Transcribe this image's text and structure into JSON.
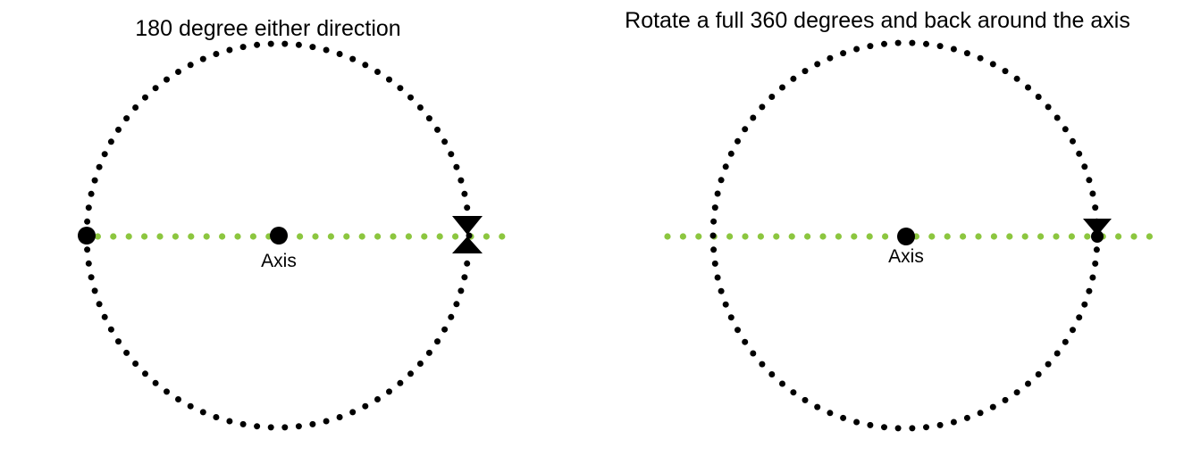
{
  "colors": {
    "background": "#ffffff",
    "circle_dots": "#000000",
    "axis_line": "#8cc63f",
    "markers": "#000000",
    "text": "#000000"
  },
  "panels": [
    {
      "id": "left",
      "title": "180 degree either direction",
      "axis_label": "Axis",
      "center_marker": "dot",
      "left_marker": "dot",
      "right_marker": "hourglass-icon"
    },
    {
      "id": "right",
      "title": "Rotate a full 360 degrees and back around the axis",
      "axis_label": "Axis",
      "center_marker": "dot",
      "left_marker": "none",
      "right_marker": "down-triangle-icon"
    }
  ]
}
